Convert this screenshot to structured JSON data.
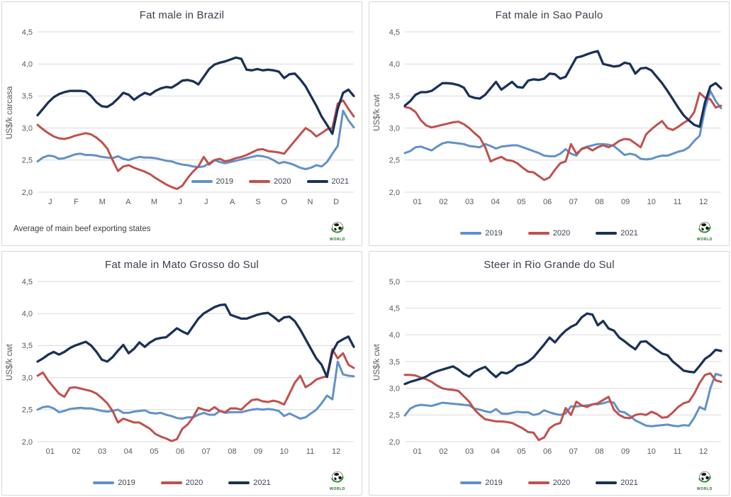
{
  "branding": {
    "logo_text": "WORLD",
    "logo_green": "#2e8b2e"
  },
  "colors": {
    "series_2019": "#6191c8",
    "series_2020": "#c0504d",
    "series_2021": "#1a3158",
    "grid": "#d9d9d9",
    "tick_text": "#595959",
    "title_text": "#3a3f4a",
    "panel_border": "#d6d6d6"
  },
  "chart_data": [
    {
      "type": "line",
      "title": "Fat male in Brazil",
      "ylabel": "US$/k carcasa",
      "xlabel": "",
      "footnote": "Average of main beef exporting states",
      "legend_position": "inside-bottom-right",
      "grid": true,
      "ylim": [
        2.0,
        4.5
      ],
      "yticks": [
        2.0,
        2.5,
        3.0,
        3.5,
        4.0,
        4.5
      ],
      "ytick_labels": [
        "2,0",
        "2,5",
        "3,0",
        "3,5",
        "4,0",
        "4,5"
      ],
      "x_tick_labels": [
        "J",
        "F",
        "M",
        "A",
        "M",
        "J",
        "J",
        "A",
        "S",
        "O",
        "N",
        "D"
      ],
      "series": [
        {
          "name": "2019",
          "color": "#6191c8",
          "values": [
            2.48,
            2.54,
            2.57,
            2.56,
            2.52,
            2.53,
            2.56,
            2.59,
            2.6,
            2.58,
            2.58,
            2.57,
            2.55,
            2.54,
            2.53,
            2.56,
            2.52,
            2.5,
            2.53,
            2.55,
            2.54,
            2.54,
            2.53,
            2.51,
            2.49,
            2.48,
            2.45,
            2.43,
            2.42,
            2.4,
            2.39,
            2.4,
            2.45,
            2.5,
            2.47,
            2.45,
            2.47,
            2.49,
            2.51,
            2.53,
            2.55,
            2.57,
            2.56,
            2.54,
            2.5,
            2.45,
            2.47,
            2.45,
            2.42,
            2.38,
            2.36,
            2.38,
            2.42,
            2.4,
            2.47,
            2.6,
            2.72,
            3.27,
            3.12,
            3.01
          ]
        },
        {
          "name": "2020",
          "color": "#c0504d",
          "values": [
            3.05,
            2.98,
            2.92,
            2.87,
            2.84,
            2.83,
            2.85,
            2.88,
            2.9,
            2.92,
            2.9,
            2.85,
            2.78,
            2.68,
            2.5,
            2.33,
            2.4,
            2.42,
            2.38,
            2.35,
            2.32,
            2.28,
            2.22,
            2.17,
            2.12,
            2.08,
            2.05,
            2.1,
            2.22,
            2.32,
            2.4,
            2.55,
            2.43,
            2.5,
            2.52,
            2.48,
            2.5,
            2.53,
            2.55,
            2.58,
            2.62,
            2.66,
            2.67,
            2.64,
            2.63,
            2.62,
            2.6,
            2.7,
            2.8,
            2.9,
            3.0,
            2.95,
            2.87,
            2.92,
            2.98,
            3.0,
            3.38,
            3.43,
            3.3,
            3.18
          ]
        },
        {
          "name": "2021",
          "color": "#1a3158",
          "values": [
            3.2,
            3.3,
            3.4,
            3.48,
            3.53,
            3.56,
            3.58,
            3.58,
            3.58,
            3.57,
            3.5,
            3.4,
            3.34,
            3.33,
            3.38,
            3.46,
            3.55,
            3.52,
            3.44,
            3.5,
            3.55,
            3.52,
            3.58,
            3.62,
            3.64,
            3.63,
            3.68,
            3.74,
            3.75,
            3.73,
            3.68,
            3.8,
            3.92,
            3.99,
            4.02,
            4.04,
            4.07,
            4.1,
            4.08,
            3.91,
            3.9,
            3.92,
            3.9,
            3.91,
            3.9,
            3.88,
            3.78,
            3.84,
            3.85,
            3.76,
            3.65,
            3.5,
            3.35,
            3.18,
            3.05,
            2.91,
            3.3,
            3.55,
            3.6,
            3.5
          ]
        }
      ]
    },
    {
      "type": "line",
      "title": "Fat male in Sao Paulo",
      "ylabel": "US$/k cwt",
      "xlabel": "",
      "legend_position": "below-center",
      "grid": true,
      "ylim": [
        2.0,
        4.5
      ],
      "yticks": [
        2.0,
        2.5,
        3.0,
        3.5,
        4.0,
        4.5
      ],
      "ytick_labels": [
        "2,0",
        "2,5",
        "3,0",
        "3,5",
        "4,0",
        "4,5"
      ],
      "x_tick_labels": [
        "01",
        "02",
        "03",
        "04",
        "05",
        "06",
        "07",
        "08",
        "09",
        "10",
        "11",
        "12"
      ],
      "series": [
        {
          "name": "2019",
          "color": "#6191c8",
          "values": [
            2.61,
            2.64,
            2.7,
            2.71,
            2.68,
            2.65,
            2.71,
            2.76,
            2.78,
            2.77,
            2.76,
            2.75,
            2.72,
            2.71,
            2.7,
            2.75,
            2.72,
            2.68,
            2.71,
            2.72,
            2.73,
            2.73,
            2.7,
            2.67,
            2.64,
            2.61,
            2.57,
            2.56,
            2.56,
            2.6,
            2.67,
            2.6,
            2.57,
            2.68,
            2.71,
            2.73,
            2.75,
            2.75,
            2.74,
            2.72,
            2.65,
            2.58,
            2.6,
            2.58,
            2.52,
            2.51,
            2.52,
            2.55,
            2.57,
            2.57,
            2.6,
            2.63,
            2.65,
            2.7,
            2.8,
            2.88,
            3.3,
            3.58,
            3.42,
            3.31
          ]
        },
        {
          "name": "2020",
          "color": "#c0504d",
          "values": [
            3.33,
            3.31,
            3.25,
            3.12,
            3.04,
            3.01,
            3.03,
            3.05,
            3.07,
            3.09,
            3.1,
            3.06,
            3.0,
            2.92,
            2.85,
            2.7,
            2.48,
            2.52,
            2.55,
            2.5,
            2.49,
            2.45,
            2.38,
            2.32,
            2.31,
            2.25,
            2.19,
            2.23,
            2.35,
            2.45,
            2.48,
            2.75,
            2.6,
            2.67,
            2.7,
            2.65,
            2.7,
            2.73,
            2.7,
            2.74,
            2.8,
            2.83,
            2.82,
            2.76,
            2.7,
            2.9,
            2.98,
            3.05,
            3.11,
            3.0,
            2.97,
            3.02,
            3.08,
            3.13,
            3.25,
            3.55,
            3.47,
            3.45,
            3.32,
            3.35
          ]
        },
        {
          "name": "2021",
          "color": "#1a3158",
          "values": [
            3.35,
            3.42,
            3.52,
            3.56,
            3.56,
            3.58,
            3.64,
            3.7,
            3.7,
            3.69,
            3.67,
            3.63,
            3.5,
            3.47,
            3.46,
            3.52,
            3.62,
            3.72,
            3.6,
            3.66,
            3.72,
            3.64,
            3.63,
            3.74,
            3.76,
            3.75,
            3.77,
            3.85,
            3.84,
            3.77,
            3.8,
            3.95,
            4.1,
            4.12,
            4.15,
            4.18,
            4.2,
            4.0,
            3.98,
            3.96,
            3.97,
            4.02,
            4.0,
            3.85,
            3.93,
            3.94,
            3.9,
            3.8,
            3.7,
            3.58,
            3.45,
            3.32,
            3.2,
            3.12,
            3.05,
            3.02,
            3.4,
            3.65,
            3.7,
            3.62
          ]
        }
      ]
    },
    {
      "type": "line",
      "title": "Fat male in Mato Grosso do Sul",
      "ylabel": "US$/k cwt",
      "xlabel": "",
      "legend_position": "below-center",
      "grid": true,
      "ylim": [
        2.0,
        4.5
      ],
      "yticks": [
        2.0,
        2.5,
        3.0,
        3.5,
        4.0,
        4.5
      ],
      "ytick_labels": [
        "2,0",
        "2,5",
        "3,0",
        "3,5",
        "4,0",
        "4,5"
      ],
      "x_tick_labels": [
        "01",
        "02",
        "03",
        "04",
        "05",
        "06",
        "07",
        "08",
        "09",
        "10",
        "11",
        "12"
      ],
      "series": [
        {
          "name": "2019",
          "color": "#6191c8",
          "values": [
            2.5,
            2.54,
            2.55,
            2.52,
            2.46,
            2.48,
            2.51,
            2.52,
            2.53,
            2.52,
            2.52,
            2.5,
            2.48,
            2.47,
            2.48,
            2.5,
            2.45,
            2.45,
            2.47,
            2.48,
            2.49,
            2.45,
            2.44,
            2.45,
            2.42,
            2.4,
            2.37,
            2.36,
            2.38,
            2.38,
            2.42,
            2.45,
            2.42,
            2.42,
            2.48,
            2.45,
            2.46,
            2.46,
            2.46,
            2.48,
            2.5,
            2.51,
            2.5,
            2.51,
            2.5,
            2.48,
            2.4,
            2.44,
            2.4,
            2.36,
            2.38,
            2.44,
            2.5,
            2.6,
            2.72,
            2.66,
            3.25,
            3.05,
            3.03,
            3.02
          ]
        },
        {
          "name": "2020",
          "color": "#c0504d",
          "values": [
            3.03,
            3.08,
            2.95,
            2.85,
            2.75,
            2.7,
            2.84,
            2.85,
            2.83,
            2.81,
            2.79,
            2.75,
            2.68,
            2.6,
            2.48,
            2.3,
            2.36,
            2.33,
            2.3,
            2.3,
            2.25,
            2.2,
            2.12,
            2.08,
            2.05,
            2.01,
            2.04,
            2.2,
            2.27,
            2.38,
            2.53,
            2.5,
            2.48,
            2.54,
            2.48,
            2.46,
            2.52,
            2.52,
            2.5,
            2.58,
            2.65,
            2.66,
            2.63,
            2.62,
            2.64,
            2.62,
            2.58,
            2.75,
            2.92,
            3.03,
            2.85,
            2.9,
            2.97,
            3.0,
            3.02,
            3.44,
            3.3,
            3.38,
            3.2,
            3.15
          ]
        },
        {
          "name": "2021",
          "color": "#1a3158",
          "values": [
            3.25,
            3.3,
            3.36,
            3.4,
            3.36,
            3.4,
            3.46,
            3.5,
            3.53,
            3.56,
            3.5,
            3.4,
            3.28,
            3.25,
            3.32,
            3.42,
            3.51,
            3.38,
            3.45,
            3.55,
            3.48,
            3.55,
            3.6,
            3.62,
            3.63,
            3.7,
            3.77,
            3.72,
            3.68,
            3.8,
            3.92,
            4.0,
            4.05,
            4.1,
            4.13,
            4.14,
            3.98,
            3.95,
            3.92,
            3.92,
            3.95,
            3.98,
            4.0,
            4.01,
            3.95,
            3.88,
            3.94,
            3.95,
            3.88,
            3.75,
            3.6,
            3.45,
            3.3,
            3.2,
            3.01,
            3.4,
            3.55,
            3.6,
            3.64,
            3.48
          ]
        }
      ]
    },
    {
      "type": "line",
      "title": "Steer in Rio Grande do Sul",
      "ylabel": "US$/k cwt",
      "xlabel": "",
      "legend_position": "below-center",
      "grid": true,
      "ylim": [
        2.0,
        5.0
      ],
      "yticks": [
        2.0,
        2.5,
        3.0,
        3.5,
        4.0,
        4.5,
        5.0
      ],
      "ytick_labels": [
        "2,0",
        "2,5",
        "3,0",
        "3,5",
        "4,0",
        "4,5",
        "5,0"
      ],
      "x_tick_labels": [
        "01",
        "02",
        "03",
        "04",
        "05",
        "06",
        "07",
        "08",
        "09",
        "10",
        "11",
        "12"
      ],
      "series": [
        {
          "name": "2019",
          "color": "#6191c8",
          "values": [
            2.49,
            2.62,
            2.67,
            2.69,
            2.68,
            2.67,
            2.7,
            2.73,
            2.72,
            2.71,
            2.7,
            2.69,
            2.68,
            2.62,
            2.6,
            2.57,
            2.55,
            2.61,
            2.53,
            2.52,
            2.54,
            2.56,
            2.55,
            2.55,
            2.5,
            2.52,
            2.59,
            2.55,
            2.52,
            2.5,
            2.53,
            2.66,
            2.66,
            2.67,
            2.68,
            2.7,
            2.7,
            2.72,
            2.75,
            2.73,
            2.57,
            2.55,
            2.48,
            2.4,
            2.35,
            2.3,
            2.29,
            2.3,
            2.31,
            2.32,
            2.3,
            2.29,
            2.31,
            2.3,
            2.45,
            2.65,
            2.6,
            3.0,
            3.27,
            3.24
          ]
        },
        {
          "name": "2020",
          "color": "#c0504d",
          "values": [
            3.25,
            3.25,
            3.24,
            3.2,
            3.17,
            3.12,
            3.05,
            3.0,
            2.98,
            2.97,
            2.95,
            2.85,
            2.75,
            2.6,
            2.5,
            2.42,
            2.4,
            2.38,
            2.38,
            2.37,
            2.35,
            2.3,
            2.25,
            2.18,
            2.17,
            2.03,
            2.08,
            2.25,
            2.32,
            2.35,
            2.63,
            2.5,
            2.75,
            2.68,
            2.65,
            2.7,
            2.72,
            2.78,
            2.84,
            2.6,
            2.5,
            2.45,
            2.44,
            2.5,
            2.52,
            2.5,
            2.56,
            2.52,
            2.45,
            2.46,
            2.55,
            2.65,
            2.72,
            2.75,
            2.9,
            3.1,
            3.25,
            3.28,
            3.15,
            3.12
          ]
        },
        {
          "name": "2021",
          "color": "#1a3158",
          "values": [
            3.08,
            3.12,
            3.15,
            3.18,
            3.22,
            3.28,
            3.32,
            3.35,
            3.38,
            3.41,
            3.35,
            3.27,
            3.22,
            3.31,
            3.36,
            3.4,
            3.3,
            3.21,
            3.3,
            3.28,
            3.33,
            3.42,
            3.45,
            3.5,
            3.58,
            3.7,
            3.82,
            3.95,
            3.86,
            3.98,
            4.08,
            4.15,
            4.2,
            4.33,
            4.4,
            4.38,
            4.18,
            4.26,
            4.12,
            4.08,
            3.95,
            3.88,
            3.8,
            3.73,
            3.87,
            3.88,
            3.8,
            3.72,
            3.65,
            3.62,
            3.5,
            3.42,
            3.33,
            3.31,
            3.3,
            3.42,
            3.55,
            3.62,
            3.72,
            3.7
          ]
        }
      ]
    }
  ]
}
